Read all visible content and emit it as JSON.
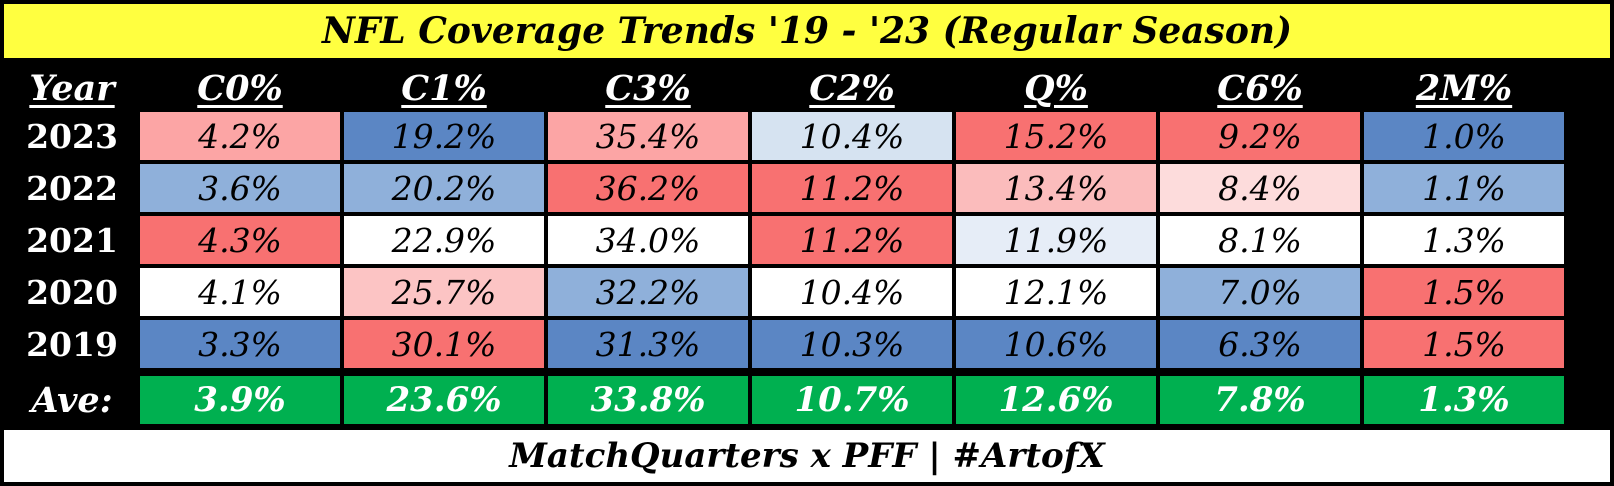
{
  "title": "NFL Coverage Trends '19 - '23 (Regular Season)",
  "footer": "MatchQuarters x PFF | #ArtofX",
  "colors": {
    "title_bg": "#ffff40",
    "background": "#000000",
    "average_row": "#00b050",
    "scale_high": "#f87171",
    "scale_mid": "#ffffff",
    "scale_low": "#5b86c4"
  },
  "chart_data": {
    "type": "table",
    "row_header_label": "Year",
    "columns": [
      "C0%",
      "C1%",
      "C3%",
      "C2%",
      "Q%",
      "C6%",
      "2M%"
    ],
    "rows": [
      {
        "label": "2023",
        "values": [
          "4.2%",
          "19.2%",
          "35.4%",
          "10.4%",
          "15.2%",
          "9.2%",
          "1.0%"
        ],
        "colors": [
          "#fca5a5",
          "#5b86c4",
          "#fca5a5",
          "#d6e3f1",
          "#f87171",
          "#f87171",
          "#5b86c4"
        ]
      },
      {
        "label": "2022",
        "values": [
          "3.6%",
          "20.2%",
          "36.2%",
          "11.2%",
          "13.4%",
          "8.4%",
          "1.1%"
        ],
        "colors": [
          "#8fb0da",
          "#8fb0da",
          "#f87171",
          "#f87171",
          "#fbbcbc",
          "#fddcdc",
          "#8fb0da"
        ]
      },
      {
        "label": "2021",
        "values": [
          "4.3%",
          "22.9%",
          "34.0%",
          "11.2%",
          "11.9%",
          "8.1%",
          "1.3%"
        ],
        "colors": [
          "#f87171",
          "#ffffff",
          "#ffffff",
          "#f87171",
          "#e6edf7",
          "#ffffff",
          "#ffffff"
        ]
      },
      {
        "label": "2020",
        "values": [
          "4.1%",
          "25.7%",
          "32.2%",
          "10.4%",
          "12.1%",
          "7.0%",
          "1.5%"
        ],
        "colors": [
          "#ffffff",
          "#fcc4c4",
          "#8fb0da",
          "#ffffff",
          "#ffffff",
          "#8fb0da",
          "#f87171"
        ]
      },
      {
        "label": "2019",
        "values": [
          "3.3%",
          "30.1%",
          "31.3%",
          "10.3%",
          "10.6%",
          "6.3%",
          "1.5%"
        ],
        "colors": [
          "#5b86c4",
          "#f87171",
          "#5b86c4",
          "#5b86c4",
          "#5b86c4",
          "#5b86c4",
          "#f87171"
        ]
      }
    ],
    "average": {
      "label": "Ave:",
      "values": [
        "3.9%",
        "23.6%",
        "33.8%",
        "10.7%",
        "12.6%",
        "7.8%",
        "1.3%"
      ]
    }
  }
}
